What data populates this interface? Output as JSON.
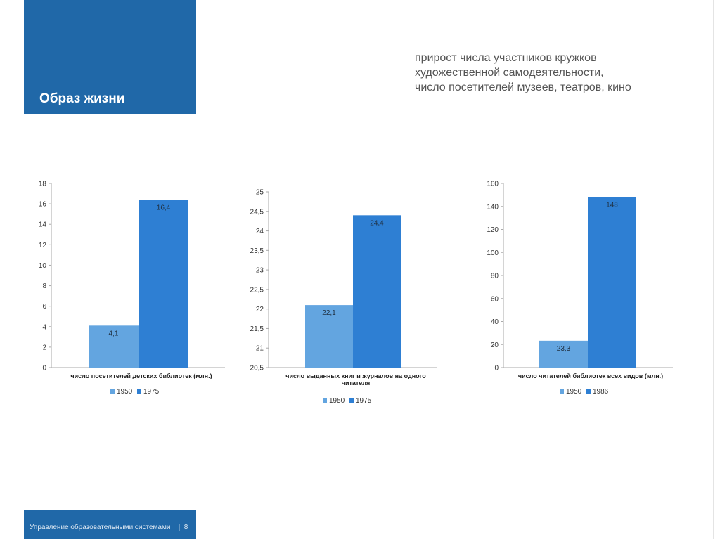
{
  "header": {
    "title": "Образ жизни"
  },
  "subtitle": {
    "lines": [
      "прирост числа участников кружков",
      "художественной самодеятельности,",
      "число посетителей музеев, театров, кино"
    ]
  },
  "footer": {
    "org": "Управление образовательными системами",
    "separator": "|",
    "page": "8"
  },
  "colors": {
    "accent": "#2068a8",
    "series_1950": "#63a5e0",
    "series_late": "#2e7fd3"
  },
  "chart_data": [
    {
      "type": "bar",
      "xlabel": "число посетителей детских библиотек (млн.)",
      "xlabel_lines": [
        "число посетителей детских библиотек (млн.)"
      ],
      "series": [
        {
          "name": "1950",
          "value": 4.1,
          "label": "4,1"
        },
        {
          "name": "1975",
          "value": 16.4,
          "label": "16,4"
        }
      ],
      "ylim": [
        0,
        18
      ],
      "yticks": [
        0,
        2,
        4,
        6,
        8,
        10,
        12,
        14,
        16,
        18
      ],
      "ytick_labels": [
        "0",
        "2",
        "4",
        "6",
        "8",
        "10",
        "12",
        "14",
        "16",
        "18"
      ],
      "legend": [
        "1950",
        "1975"
      ],
      "grid": false
    },
    {
      "type": "bar",
      "xlabel": "число выданных книг и журналов на одного читателя",
      "xlabel_lines": [
        "число выданных книг и журналов на одного",
        "читателя"
      ],
      "series": [
        {
          "name": "1950",
          "value": 22.1,
          "label": "22,1"
        },
        {
          "name": "1975",
          "value": 24.4,
          "label": "24,4"
        }
      ],
      "ylim": [
        20.5,
        25
      ],
      "yticks": [
        20.5,
        21,
        21.5,
        22,
        22.5,
        23,
        23.5,
        24,
        24.5,
        25
      ],
      "ytick_labels": [
        "20,5",
        "21",
        "21,5",
        "22",
        "22,5",
        "23",
        "23,5",
        "24",
        "24,5",
        "25"
      ],
      "legend": [
        "1950",
        "1975"
      ],
      "grid": false
    },
    {
      "type": "bar",
      "xlabel": "число читателей библиотек всех видов (млн.)",
      "xlabel_lines": [
        "число читателей библиотек всех видов (млн.)"
      ],
      "series": [
        {
          "name": "1950",
          "value": 23.3,
          "label": "23,3"
        },
        {
          "name": "1986",
          "value": 148,
          "label": "148"
        }
      ],
      "ylim": [
        0,
        160
      ],
      "yticks": [
        0,
        20,
        40,
        60,
        80,
        100,
        120,
        140,
        160
      ],
      "ytick_labels": [
        "0",
        "20",
        "40",
        "60",
        "80",
        "100",
        "120",
        "140",
        "160"
      ],
      "legend": [
        "1950",
        "1986"
      ],
      "grid": false
    }
  ]
}
